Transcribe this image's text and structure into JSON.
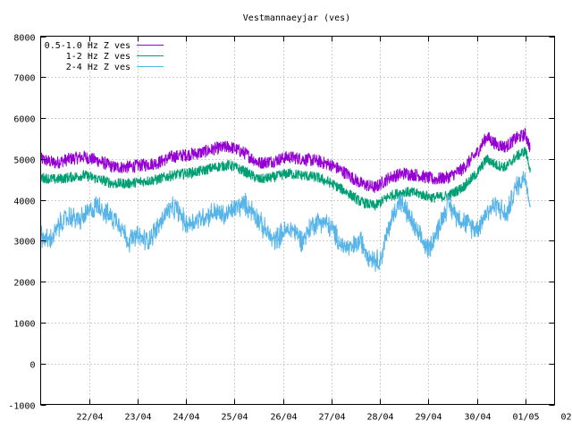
{
  "chart_data": {
    "type": "line",
    "title": "Vestmannaeyjar (ves)",
    "xlabel": "",
    "ylabel": "",
    "x_domain_days": [
      0,
      10.6
    ],
    "ylim": [
      -1000,
      8000
    ],
    "y_ticks": [
      -1000,
      0,
      1000,
      2000,
      3000,
      4000,
      5000,
      6000,
      7000,
      8000
    ],
    "x_ticks": [
      {
        "label": "22/04",
        "x": 1
      },
      {
        "label": "23/04",
        "x": 2
      },
      {
        "label": "24/04",
        "x": 3
      },
      {
        "label": "25/04",
        "x": 4
      },
      {
        "label": "26/04",
        "x": 5
      },
      {
        "label": "27/04",
        "x": 6
      },
      {
        "label": "28/04",
        "x": 7
      },
      {
        "label": "29/04",
        "x": 8
      },
      {
        "label": "30/04",
        "x": 9
      },
      {
        "label": "01/05",
        "x": 10
      },
      {
        "label": "02/05",
        "x": 11
      }
    ],
    "grid": true,
    "legend_position": "top-left",
    "series": [
      {
        "name": "0.5-1.0 Hz Z ves",
        "color": "#9400d3",
        "noise": 160,
        "x": [
          0,
          0.3,
          0.6,
          0.9,
          1.2,
          1.5,
          1.8,
          2.1,
          2.4,
          2.7,
          3.0,
          3.3,
          3.6,
          3.9,
          4.2,
          4.5,
          4.8,
          5.1,
          5.4,
          5.7,
          6.0,
          6.3,
          6.6,
          6.9,
          7.2,
          7.5,
          7.8,
          8.1,
          8.4,
          8.7,
          9.0,
          9.2,
          9.4,
          9.6,
          9.8,
          10.0,
          10.1
        ],
        "y": [
          5000,
          4900,
          5000,
          5050,
          4950,
          4800,
          4800,
          4850,
          4900,
          5050,
          5100,
          5150,
          5250,
          5300,
          5150,
          4900,
          4950,
          5050,
          5000,
          4950,
          4850,
          4650,
          4400,
          4300,
          4550,
          4650,
          4600,
          4500,
          4550,
          4750,
          5150,
          5550,
          5350,
          5300,
          5500,
          5600,
          5250
        ]
      },
      {
        "name": "1-2 Hz Z ves",
        "color": "#009e73",
        "noise": 130,
        "x": [
          0,
          0.3,
          0.6,
          0.9,
          1.2,
          1.5,
          1.8,
          2.1,
          2.4,
          2.7,
          3.0,
          3.3,
          3.6,
          3.9,
          4.2,
          4.5,
          4.8,
          5.1,
          5.4,
          5.7,
          6.0,
          6.3,
          6.6,
          6.9,
          7.2,
          7.5,
          7.8,
          8.1,
          8.4,
          8.7,
          9.0,
          9.2,
          9.4,
          9.6,
          9.8,
          10.0,
          10.1
        ],
        "y": [
          4550,
          4500,
          4550,
          4600,
          4500,
          4400,
          4400,
          4450,
          4500,
          4600,
          4650,
          4700,
          4800,
          4850,
          4700,
          4500,
          4550,
          4650,
          4600,
          4550,
          4400,
          4200,
          3950,
          3850,
          4100,
          4200,
          4150,
          4050,
          4100,
          4300,
          4650,
          5000,
          4850,
          4800,
          5050,
          5200,
          4750
        ]
      },
      {
        "name": "2-4 Hz Z ves",
        "color": "#56b4e9",
        "noise": 280,
        "x": [
          0,
          0.2,
          0.4,
          0.6,
          0.8,
          1.0,
          1.2,
          1.4,
          1.6,
          1.8,
          2.0,
          2.2,
          2.4,
          2.6,
          2.8,
          3.0,
          3.2,
          3.4,
          3.6,
          3.8,
          4.0,
          4.2,
          4.4,
          4.6,
          4.8,
          5.0,
          5.2,
          5.4,
          5.6,
          5.8,
          6.0,
          6.2,
          6.4,
          6.6,
          6.8,
          7.0,
          7.2,
          7.4,
          7.6,
          7.8,
          8.0,
          8.2,
          8.4,
          8.6,
          8.8,
          9.0,
          9.2,
          9.4,
          9.6,
          9.8,
          10.0,
          10.1
        ],
        "y": [
          3100,
          3000,
          3400,
          3600,
          3500,
          3700,
          3900,
          3600,
          3500,
          3000,
          3100,
          3000,
          3300,
          3700,
          3800,
          3400,
          3500,
          3600,
          3700,
          3600,
          3800,
          3900,
          3700,
          3300,
          3000,
          3200,
          3300,
          3000,
          3400,
          3500,
          3300,
          2900,
          2800,
          3000,
          2600,
          2500,
          3400,
          4000,
          3600,
          3100,
          2800,
          3300,
          3900,
          3600,
          3400,
          3300,
          3700,
          3900,
          3600,
          4300,
          4600,
          3800
        ]
      }
    ]
  }
}
